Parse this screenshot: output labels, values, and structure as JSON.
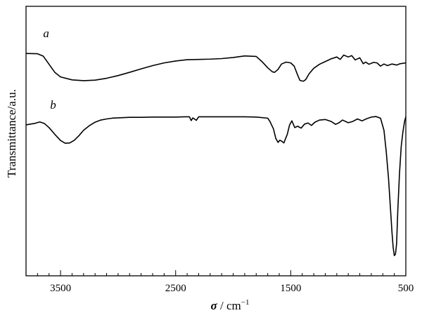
{
  "chart_data": {
    "type": "line",
    "title": "",
    "xlabel": {
      "symbol": "σ",
      "sep": " / ",
      "unit": "cm",
      "exponent": "−1"
    },
    "ylabel": "Transmittance/a.u.",
    "x_reversed": true,
    "xlim": [
      3800,
      500
    ],
    "ylim": [
      0,
      10
    ],
    "x_ticks": [
      3500,
      2500,
      1500,
      500
    ],
    "x_tick_labels": [
      "3500",
      "2500",
      "1500",
      "500"
    ],
    "x_minor_step": 100,
    "grid": false,
    "legend": "none",
    "series": [
      {
        "name": "a",
        "color": "#000000",
        "label_at": [
          3625,
          8.85
        ],
        "points": [
          [
            3800,
            8.25
          ],
          [
            3700,
            8.24
          ],
          [
            3650,
            8.15
          ],
          [
            3600,
            7.85
          ],
          [
            3550,
            7.55
          ],
          [
            3500,
            7.38
          ],
          [
            3400,
            7.27
          ],
          [
            3300,
            7.24
          ],
          [
            3200,
            7.26
          ],
          [
            3100,
            7.33
          ],
          [
            3000,
            7.43
          ],
          [
            2900,
            7.55
          ],
          [
            2800,
            7.68
          ],
          [
            2700,
            7.8
          ],
          [
            2600,
            7.9
          ],
          [
            2500,
            7.97
          ],
          [
            2400,
            8.02
          ],
          [
            2300,
            8.03
          ],
          [
            2200,
            8.04
          ],
          [
            2100,
            8.06
          ],
          [
            2000,
            8.1
          ],
          [
            1900,
            8.16
          ],
          [
            1800,
            8.14
          ],
          [
            1750,
            7.95
          ],
          [
            1700,
            7.72
          ],
          [
            1660,
            7.57
          ],
          [
            1640,
            7.55
          ],
          [
            1610,
            7.66
          ],
          [
            1580,
            7.86
          ],
          [
            1540,
            7.93
          ],
          [
            1500,
            7.9
          ],
          [
            1470,
            7.78
          ],
          [
            1440,
            7.45
          ],
          [
            1420,
            7.25
          ],
          [
            1390,
            7.22
          ],
          [
            1370,
            7.28
          ],
          [
            1340,
            7.5
          ],
          [
            1300,
            7.7
          ],
          [
            1250,
            7.85
          ],
          [
            1200,
            7.95
          ],
          [
            1150,
            8.05
          ],
          [
            1100,
            8.12
          ],
          [
            1070,
            8.03
          ],
          [
            1040,
            8.19
          ],
          [
            1000,
            8.12
          ],
          [
            970,
            8.17
          ],
          [
            940,
            8.01
          ],
          [
            900,
            8.09
          ],
          [
            870,
            7.87
          ],
          [
            850,
            7.93
          ],
          [
            820,
            7.85
          ],
          [
            780,
            7.92
          ],
          [
            750,
            7.9
          ],
          [
            720,
            7.78
          ],
          [
            690,
            7.86
          ],
          [
            660,
            7.8
          ],
          [
            620,
            7.86
          ],
          [
            580,
            7.82
          ],
          [
            550,
            7.87
          ],
          [
            500,
            7.9
          ]
        ]
      },
      {
        "name": "b",
        "color": "#000000",
        "label_at": [
          3565,
          6.2
        ],
        "points": [
          [
            3800,
            5.6
          ],
          [
            3760,
            5.63
          ],
          [
            3720,
            5.66
          ],
          [
            3680,
            5.71
          ],
          [
            3640,
            5.65
          ],
          [
            3600,
            5.5
          ],
          [
            3550,
            5.25
          ],
          [
            3500,
            5.02
          ],
          [
            3460,
            4.92
          ],
          [
            3420,
            4.93
          ],
          [
            3380,
            5.03
          ],
          [
            3340,
            5.2
          ],
          [
            3300,
            5.4
          ],
          [
            3250,
            5.57
          ],
          [
            3200,
            5.7
          ],
          [
            3150,
            5.78
          ],
          [
            3100,
            5.82
          ],
          [
            3050,
            5.85
          ],
          [
            3000,
            5.86
          ],
          [
            2900,
            5.88
          ],
          [
            2800,
            5.88
          ],
          [
            2700,
            5.89
          ],
          [
            2600,
            5.89
          ],
          [
            2500,
            5.89
          ],
          [
            2420,
            5.9
          ],
          [
            2380,
            5.9
          ],
          [
            2365,
            5.76
          ],
          [
            2350,
            5.86
          ],
          [
            2320,
            5.77
          ],
          [
            2300,
            5.9
          ],
          [
            2200,
            5.9
          ],
          [
            2100,
            5.9
          ],
          [
            2000,
            5.9
          ],
          [
            1900,
            5.9
          ],
          [
            1800,
            5.89
          ],
          [
            1700,
            5.85
          ],
          [
            1680,
            5.72
          ],
          [
            1650,
            5.45
          ],
          [
            1630,
            5.1
          ],
          [
            1610,
            4.95
          ],
          [
            1595,
            5.03
          ],
          [
            1580,
            5.0
          ],
          [
            1560,
            4.93
          ],
          [
            1530,
            5.25
          ],
          [
            1510,
            5.6
          ],
          [
            1490,
            5.75
          ],
          [
            1465,
            5.5
          ],
          [
            1440,
            5.55
          ],
          [
            1410,
            5.48
          ],
          [
            1380,
            5.63
          ],
          [
            1350,
            5.67
          ],
          [
            1320,
            5.58
          ],
          [
            1290,
            5.7
          ],
          [
            1250,
            5.78
          ],
          [
            1200,
            5.8
          ],
          [
            1150,
            5.73
          ],
          [
            1110,
            5.62
          ],
          [
            1080,
            5.68
          ],
          [
            1050,
            5.78
          ],
          [
            1000,
            5.68
          ],
          [
            960,
            5.73
          ],
          [
            920,
            5.82
          ],
          [
            880,
            5.75
          ],
          [
            840,
            5.83
          ],
          [
            800,
            5.89
          ],
          [
            760,
            5.91
          ],
          [
            720,
            5.85
          ],
          [
            690,
            5.4
          ],
          [
            670,
            4.6
          ],
          [
            650,
            3.6
          ],
          [
            635,
            2.6
          ],
          [
            620,
            1.6
          ],
          [
            610,
            1.05
          ],
          [
            600,
            0.75
          ],
          [
            590,
            0.8
          ],
          [
            580,
            1.2
          ],
          [
            570,
            2.4
          ],
          [
            555,
            3.8
          ],
          [
            540,
            4.8
          ],
          [
            525,
            5.35
          ],
          [
            510,
            5.75
          ],
          [
            500,
            5.9
          ]
        ]
      }
    ]
  }
}
